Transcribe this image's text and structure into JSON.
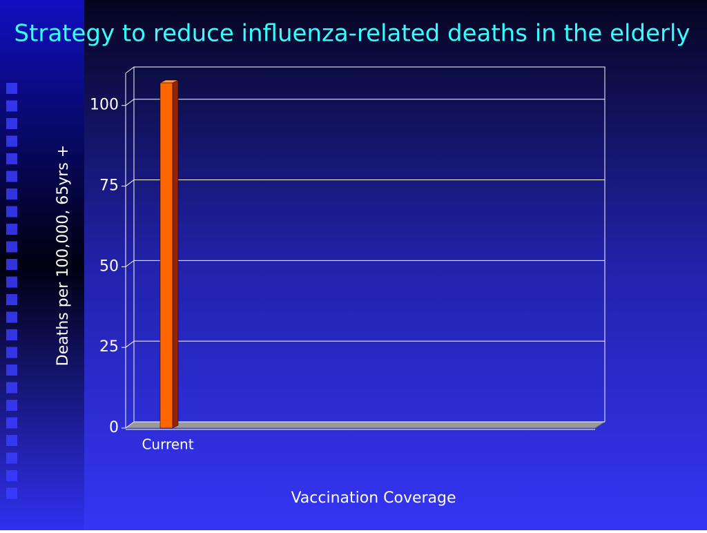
{
  "chart_data": {
    "type": "bar",
    "title": "Strategy to reduce influenza-related deaths in the elderly",
    "categories": [
      "Current"
    ],
    "values": [
      107
    ],
    "color": "#ff6600",
    "ylim": [
      0,
      110
    ],
    "yticks": [
      0,
      25,
      50,
      75,
      100
    ],
    "grid": true,
    "y_label": "Deaths per 100,000,  65yrs +",
    "x_label": "Vaccination Coverage"
  }
}
